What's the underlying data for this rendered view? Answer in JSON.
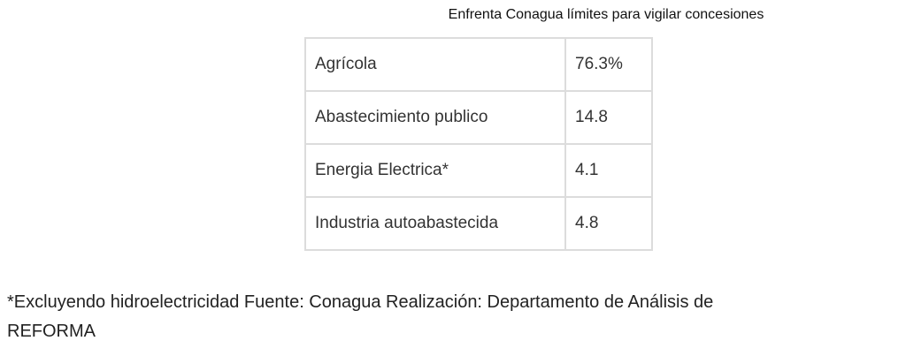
{
  "caption": "Enfrenta Conagua límites para vigilar concesiones",
  "table": {
    "rows": [
      {
        "label": "Agrícola",
        "value": "76.3%"
      },
      {
        "label": "Abastecimiento publico",
        "value": "14.8"
      },
      {
        "label": "Energia Electrica*",
        "value": "4.1"
      },
      {
        "label": "Industria autoabastecida",
        "value": "4.8"
      }
    ]
  },
  "footnote": {
    "line1": "*Excluyendo hidroelectricidad Fuente: Conagua Realización: Departamento de Análisis de",
    "line2": "REFORMA"
  }
}
